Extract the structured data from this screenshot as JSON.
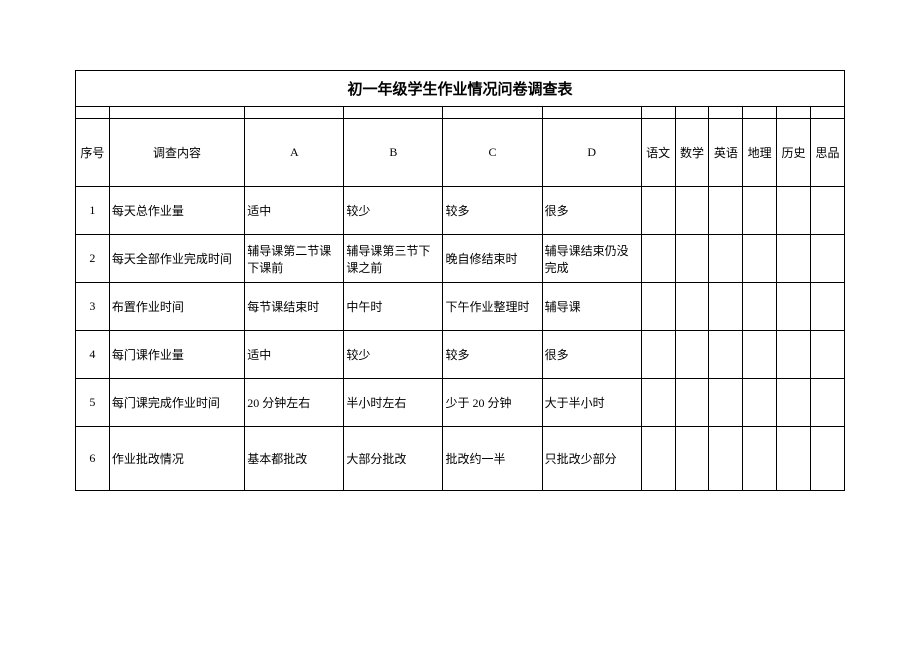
{
  "title": "初一年级学生作业情况问卷调查表",
  "headers": {
    "seq": "序号",
    "content": "调查内容",
    "a": "A",
    "b": "B",
    "c": "C",
    "d": "D",
    "subjects": [
      "语文",
      "数学",
      "英语",
      "地理",
      "历史",
      "思品"
    ]
  },
  "rows": [
    {
      "seq": "1",
      "content": "每天总作业量",
      "a": "适中",
      "b": "较少",
      "c": "较多",
      "d": "很多"
    },
    {
      "seq": "2",
      "content": "每天全部作业完成时间",
      "a": "辅导课第二节课下课前",
      "b": "辅导课第三节下课之前",
      "c": "晚自修结束时",
      "d": "辅导课结束仍没完成"
    },
    {
      "seq": "3",
      "content": "布置作业时间",
      "a": "每节课结束时",
      "b": "中午时",
      "c": "下午作业整理时",
      "d": "辅导课"
    },
    {
      "seq": "4",
      "content": "每门课作业量",
      "a": "适中",
      "b": "较少",
      "c": "较多",
      "d": "很多"
    },
    {
      "seq": "5",
      "content": "每门课完成作业时间",
      "a": "20 分钟左右",
      "b": "半小时左右",
      "c": "少于 20 分钟",
      "d": "大于半小时"
    },
    {
      "seq": "6",
      "content": "作业批改情况",
      "a": "基本都批改",
      "b": "大部分批改",
      "c": "批改约一半",
      "d": "只批改少部分"
    }
  ],
  "styling": {
    "border_color": "#000000",
    "background_color": "#ffffff",
    "text_color": "#000000",
    "title_fontsize": 15,
    "cell_fontsize": 12,
    "font_family": "SimSun"
  }
}
